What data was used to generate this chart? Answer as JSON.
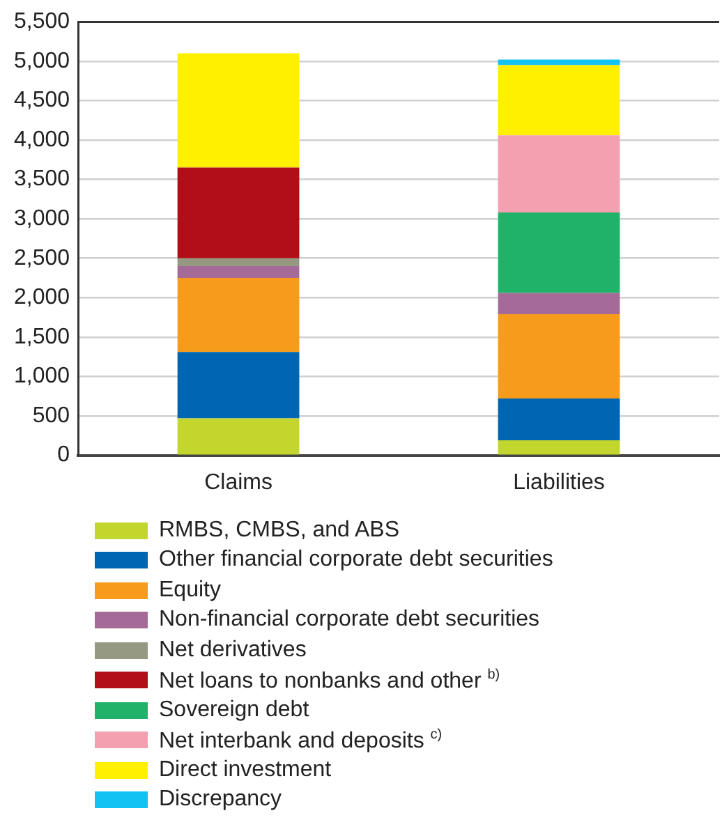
{
  "chart_data": {
    "type": "bar",
    "stacked": true,
    "categories": [
      "Claims",
      "Liabilities"
    ],
    "series": [
      {
        "name": "RMBS, CMBS, and ABS",
        "color": "#c2d62e",
        "values": [
          470,
          190
        ]
      },
      {
        "name": "Other financial corporate debt securities",
        "color": "#0066b3",
        "values": [
          840,
          530
        ]
      },
      {
        "name": "Equity",
        "color": "#f79b1c",
        "values": [
          940,
          1070
        ]
      },
      {
        "name": "Non-financial corporate debt securities",
        "color": "#a66a98",
        "values": [
          150,
          270
        ]
      },
      {
        "name": "Net derivatives",
        "color": "#969982",
        "values": [
          100,
          0
        ]
      },
      {
        "name": "Net loans to nonbanks and other $^{b)}$",
        "color": "#b20e17",
        "values": [
          1150,
          0
        ]
      },
      {
        "name": "Sovereign debt",
        "color": "#21b26a",
        "values": [
          0,
          1020
        ]
      },
      {
        "name": "Net interbank and deposits $^{c)}$",
        "color": "#f3a0b0",
        "values": [
          0,
          980
        ]
      },
      {
        "name": "Direct investment",
        "color": "#fff000",
        "values": [
          1450,
          890
        ]
      },
      {
        "name": "Discrepancy",
        "color": "#12c2f2",
        "values": [
          0,
          70
        ]
      }
    ],
    "ylim": [
      0,
      5500
    ],
    "yticks": [
      {
        "value": 0,
        "label": "0"
      },
      {
        "value": 500,
        "label": "500"
      },
      {
        "value": 1000,
        "label": "1,000"
      },
      {
        "value": 1500,
        "label": "1,500"
      },
      {
        "value": 2000,
        "label": "2,000"
      },
      {
        "value": 2500,
        "label": "2,500"
      },
      {
        "value": 3000,
        "label": "3,000"
      },
      {
        "value": 3500,
        "label": "3,500"
      },
      {
        "value": 4000,
        "label": "4,000"
      },
      {
        "value": 4500,
        "label": "4,500"
      },
      {
        "value": 5000,
        "label": "5,000"
      },
      {
        "value": 5500,
        "label": "5,500"
      }
    ],
    "grid": "y",
    "legend": "bottom"
  }
}
